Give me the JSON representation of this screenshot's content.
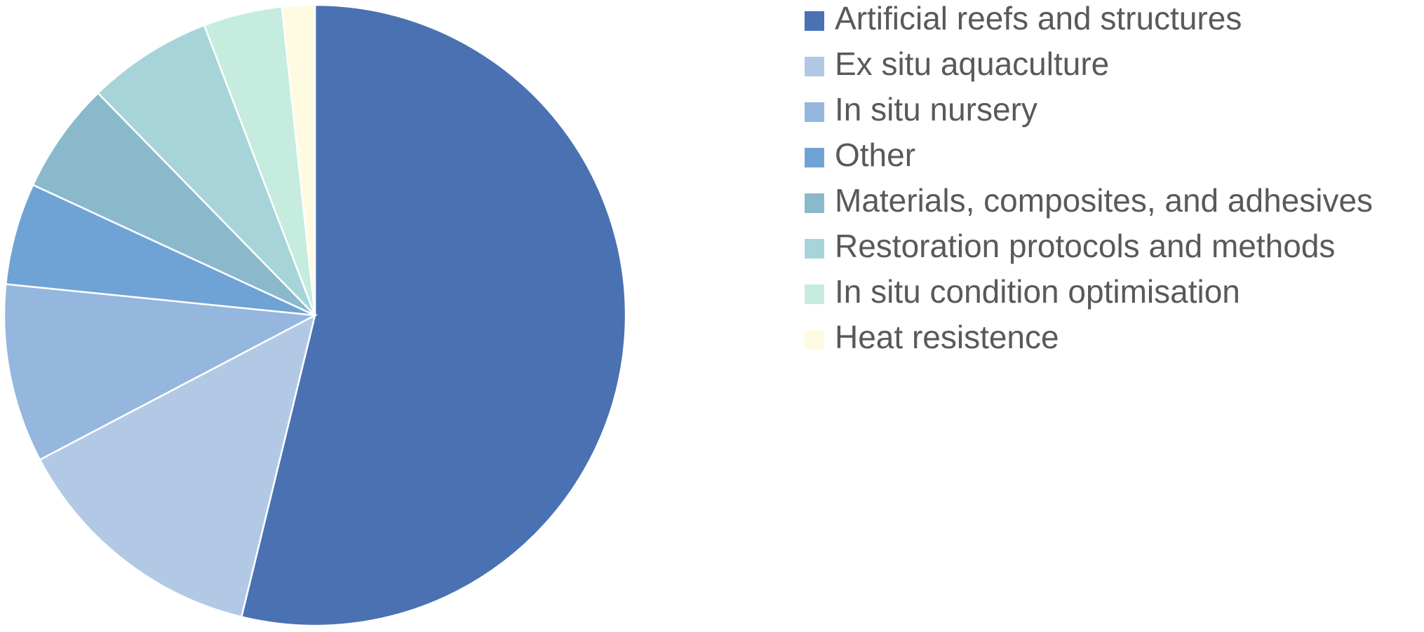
{
  "chart_data": {
    "type": "pie",
    "categories": [
      "Artificial reefs and structures",
      "Ex situ aquaculture",
      "In situ nursery",
      "Other",
      "Materials, composites, and adhesives",
      "Restoration protocols and methods",
      "In situ condition optimisation",
      "Heat resistence"
    ],
    "values": [
      53.8,
      13.5,
      9.3,
      5.3,
      5.8,
      6.5,
      4.1,
      1.7
    ],
    "colors": [
      "#4a71b2",
      "#b2c9e5",
      "#95b6dd",
      "#6fa3d6",
      "#8ab9cc",
      "#a6d4d9",
      "#c5ecdf",
      "#fefbe0"
    ],
    "legend": "right"
  }
}
